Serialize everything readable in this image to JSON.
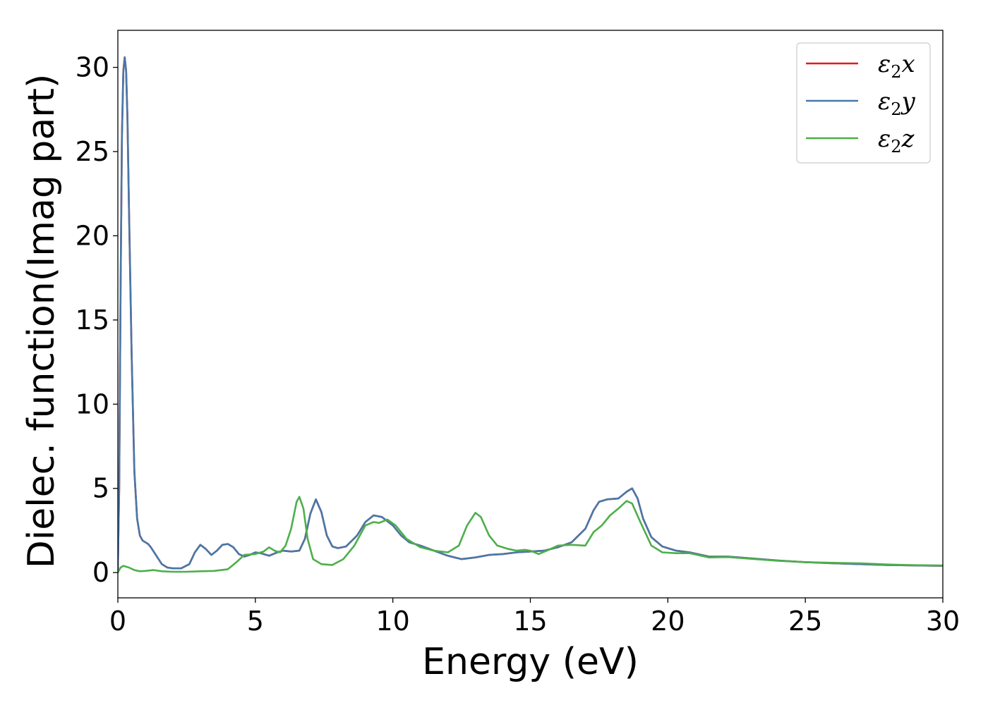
{
  "chart_data": {
    "type": "line",
    "title": "",
    "xlabel": "Energy (eV)",
    "ylabel": "Dielec. function(Imag part)",
    "xlim": [
      0,
      30
    ],
    "ylim": [
      -1.5,
      32.2
    ],
    "xticks": [
      0,
      5,
      10,
      15,
      20,
      25,
      30
    ],
    "yticks": [
      0,
      5,
      10,
      15,
      20,
      25,
      30
    ],
    "grid": false,
    "legend_position": "top-right",
    "series": [
      {
        "name": "ε₂x",
        "legend_base": "ε",
        "legend_sub": "2",
        "legend_tail": "x",
        "color": "#e41a1c",
        "points": [
          [
            0,
            0.2
          ],
          [
            0.05,
            5
          ],
          [
            0.1,
            17
          ],
          [
            0.15,
            26
          ],
          [
            0.2,
            29.8
          ],
          [
            0.25,
            30.6
          ],
          [
            0.3,
            29.8
          ],
          [
            0.35,
            27
          ],
          [
            0.4,
            22
          ],
          [
            0.5,
            13
          ],
          [
            0.6,
            6
          ],
          [
            0.7,
            3.2
          ],
          [
            0.8,
            2.2
          ],
          [
            0.9,
            1.9
          ],
          [
            1.0,
            1.8
          ],
          [
            1.1,
            1.7
          ],
          [
            1.2,
            1.5
          ],
          [
            1.4,
            1.0
          ],
          [
            1.6,
            0.5
          ],
          [
            1.8,
            0.3
          ],
          [
            2.0,
            0.25
          ],
          [
            2.3,
            0.25
          ],
          [
            2.6,
            0.5
          ],
          [
            2.8,
            1.2
          ],
          [
            3.0,
            1.65
          ],
          [
            3.2,
            1.4
          ],
          [
            3.4,
            1.05
          ],
          [
            3.6,
            1.3
          ],
          [
            3.8,
            1.65
          ],
          [
            4.0,
            1.7
          ],
          [
            4.2,
            1.5
          ],
          [
            4.4,
            1.1
          ],
          [
            4.6,
            0.95
          ],
          [
            4.8,
            1.05
          ],
          [
            5.0,
            1.2
          ],
          [
            5.2,
            1.15
          ],
          [
            5.5,
            1.0
          ],
          [
            5.8,
            1.2
          ],
          [
            6.0,
            1.3
          ],
          [
            6.3,
            1.25
          ],
          [
            6.6,
            1.3
          ],
          [
            6.8,
            2.0
          ],
          [
            7.0,
            3.5
          ],
          [
            7.2,
            4.35
          ],
          [
            7.4,
            3.6
          ],
          [
            7.6,
            2.2
          ],
          [
            7.8,
            1.55
          ],
          [
            8.0,
            1.45
          ],
          [
            8.3,
            1.55
          ],
          [
            8.7,
            2.2
          ],
          [
            9.0,
            3.0
          ],
          [
            9.3,
            3.4
          ],
          [
            9.6,
            3.3
          ],
          [
            10.0,
            2.8
          ],
          [
            10.3,
            2.2
          ],
          [
            10.6,
            1.8
          ],
          [
            11.0,
            1.6
          ],
          [
            11.5,
            1.3
          ],
          [
            12.0,
            1.0
          ],
          [
            12.5,
            0.8
          ],
          [
            13.0,
            0.9
          ],
          [
            13.5,
            1.05
          ],
          [
            14.0,
            1.1
          ],
          [
            14.5,
            1.2
          ],
          [
            15.0,
            1.25
          ],
          [
            15.5,
            1.3
          ],
          [
            16.0,
            1.5
          ],
          [
            16.5,
            1.8
          ],
          [
            17.0,
            2.6
          ],
          [
            17.3,
            3.7
          ],
          [
            17.5,
            4.2
          ],
          [
            17.8,
            4.35
          ],
          [
            18.2,
            4.4
          ],
          [
            18.5,
            4.8
          ],
          [
            18.7,
            5.0
          ],
          [
            18.9,
            4.4
          ],
          [
            19.1,
            3.2
          ],
          [
            19.4,
            2.1
          ],
          [
            19.8,
            1.55
          ],
          [
            20.3,
            1.3
          ],
          [
            20.8,
            1.2
          ],
          [
            21.5,
            0.95
          ],
          [
            22.2,
            0.95
          ],
          [
            23.0,
            0.85
          ],
          [
            24.0,
            0.72
          ],
          [
            25.0,
            0.62
          ],
          [
            26.0,
            0.55
          ],
          [
            27.0,
            0.5
          ],
          [
            28.0,
            0.45
          ],
          [
            29.0,
            0.42
          ],
          [
            30.0,
            0.4
          ]
        ]
      },
      {
        "name": "ε₂y",
        "legend_base": "ε",
        "legend_sub": "2",
        "legend_tail": "y",
        "color": "#4878a8",
        "points": [
          [
            0,
            0.2
          ],
          [
            0.05,
            5
          ],
          [
            0.1,
            17
          ],
          [
            0.15,
            26
          ],
          [
            0.2,
            29.8
          ],
          [
            0.25,
            30.6
          ],
          [
            0.3,
            29.8
          ],
          [
            0.35,
            27
          ],
          [
            0.4,
            22
          ],
          [
            0.5,
            13
          ],
          [
            0.6,
            6
          ],
          [
            0.7,
            3.2
          ],
          [
            0.8,
            2.2
          ],
          [
            0.9,
            1.9
          ],
          [
            1.0,
            1.8
          ],
          [
            1.1,
            1.7
          ],
          [
            1.2,
            1.5
          ],
          [
            1.4,
            1.0
          ],
          [
            1.6,
            0.5
          ],
          [
            1.8,
            0.3
          ],
          [
            2.0,
            0.25
          ],
          [
            2.3,
            0.25
          ],
          [
            2.6,
            0.5
          ],
          [
            2.8,
            1.2
          ],
          [
            3.0,
            1.65
          ],
          [
            3.2,
            1.4
          ],
          [
            3.4,
            1.05
          ],
          [
            3.6,
            1.3
          ],
          [
            3.8,
            1.65
          ],
          [
            4.0,
            1.7
          ],
          [
            4.2,
            1.5
          ],
          [
            4.4,
            1.1
          ],
          [
            4.6,
            0.95
          ],
          [
            4.8,
            1.05
          ],
          [
            5.0,
            1.2
          ],
          [
            5.2,
            1.15
          ],
          [
            5.5,
            1.0
          ],
          [
            5.8,
            1.2
          ],
          [
            6.0,
            1.3
          ],
          [
            6.3,
            1.25
          ],
          [
            6.6,
            1.3
          ],
          [
            6.8,
            2.0
          ],
          [
            7.0,
            3.5
          ],
          [
            7.2,
            4.35
          ],
          [
            7.4,
            3.6
          ],
          [
            7.6,
            2.2
          ],
          [
            7.8,
            1.55
          ],
          [
            8.0,
            1.45
          ],
          [
            8.3,
            1.55
          ],
          [
            8.7,
            2.2
          ],
          [
            9.0,
            3.0
          ],
          [
            9.3,
            3.4
          ],
          [
            9.6,
            3.3
          ],
          [
            10.0,
            2.8
          ],
          [
            10.3,
            2.2
          ],
          [
            10.6,
            1.8
          ],
          [
            11.0,
            1.6
          ],
          [
            11.5,
            1.3
          ],
          [
            12.0,
            1.0
          ],
          [
            12.5,
            0.8
          ],
          [
            13.0,
            0.9
          ],
          [
            13.5,
            1.05
          ],
          [
            14.0,
            1.1
          ],
          [
            14.5,
            1.2
          ],
          [
            15.0,
            1.25
          ],
          [
            15.5,
            1.3
          ],
          [
            16.0,
            1.5
          ],
          [
            16.5,
            1.8
          ],
          [
            17.0,
            2.6
          ],
          [
            17.3,
            3.7
          ],
          [
            17.5,
            4.2
          ],
          [
            17.8,
            4.35
          ],
          [
            18.2,
            4.4
          ],
          [
            18.5,
            4.8
          ],
          [
            18.7,
            5.0
          ],
          [
            18.9,
            4.4
          ],
          [
            19.1,
            3.2
          ],
          [
            19.4,
            2.1
          ],
          [
            19.8,
            1.55
          ],
          [
            20.3,
            1.3
          ],
          [
            20.8,
            1.2
          ],
          [
            21.5,
            0.95
          ],
          [
            22.2,
            0.95
          ],
          [
            23.0,
            0.85
          ],
          [
            24.0,
            0.72
          ],
          [
            25.0,
            0.62
          ],
          [
            26.0,
            0.55
          ],
          [
            27.0,
            0.5
          ],
          [
            28.0,
            0.45
          ],
          [
            29.0,
            0.42
          ],
          [
            30.0,
            0.4
          ]
        ]
      },
      {
        "name": "ε₂z",
        "legend_base": "ε",
        "legend_sub": "2",
        "legend_tail": "z",
        "color": "#4daf4a",
        "points": [
          [
            0,
            0.0
          ],
          [
            0.1,
            0.3
          ],
          [
            0.2,
            0.4
          ],
          [
            0.4,
            0.3
          ],
          [
            0.6,
            0.15
          ],
          [
            0.8,
            0.08
          ],
          [
            1.0,
            0.1
          ],
          [
            1.3,
            0.15
          ],
          [
            1.6,
            0.08
          ],
          [
            2.0,
            0.05
          ],
          [
            2.5,
            0.05
          ],
          [
            3.0,
            0.08
          ],
          [
            3.5,
            0.1
          ],
          [
            4.0,
            0.2
          ],
          [
            4.3,
            0.6
          ],
          [
            4.6,
            1.05
          ],
          [
            5.0,
            1.1
          ],
          [
            5.3,
            1.25
          ],
          [
            5.5,
            1.5
          ],
          [
            5.7,
            1.3
          ],
          [
            5.9,
            1.2
          ],
          [
            6.1,
            1.6
          ],
          [
            6.3,
            2.6
          ],
          [
            6.5,
            4.2
          ],
          [
            6.6,
            4.5
          ],
          [
            6.75,
            3.8
          ],
          [
            6.9,
            2.0
          ],
          [
            7.1,
            0.8
          ],
          [
            7.4,
            0.5
          ],
          [
            7.8,
            0.45
          ],
          [
            8.2,
            0.8
          ],
          [
            8.6,
            1.6
          ],
          [
            9.0,
            2.8
          ],
          [
            9.3,
            3.0
          ],
          [
            9.5,
            2.95
          ],
          [
            9.8,
            3.15
          ],
          [
            10.1,
            2.8
          ],
          [
            10.5,
            2.0
          ],
          [
            11.0,
            1.5
          ],
          [
            11.5,
            1.3
          ],
          [
            12.0,
            1.2
          ],
          [
            12.4,
            1.6
          ],
          [
            12.7,
            2.8
          ],
          [
            13.0,
            3.55
          ],
          [
            13.2,
            3.3
          ],
          [
            13.5,
            2.2
          ],
          [
            13.8,
            1.6
          ],
          [
            14.2,
            1.4
          ],
          [
            14.5,
            1.3
          ],
          [
            14.8,
            1.35
          ],
          [
            15.0,
            1.3
          ],
          [
            15.3,
            1.1
          ],
          [
            15.6,
            1.3
          ],
          [
            16.0,
            1.6
          ],
          [
            16.5,
            1.65
          ],
          [
            17.0,
            1.6
          ],
          [
            17.3,
            2.4
          ],
          [
            17.6,
            2.8
          ],
          [
            17.9,
            3.4
          ],
          [
            18.2,
            3.8
          ],
          [
            18.5,
            4.25
          ],
          [
            18.7,
            4.1
          ],
          [
            19.0,
            3.0
          ],
          [
            19.4,
            1.6
          ],
          [
            19.8,
            1.2
          ],
          [
            20.3,
            1.15
          ],
          [
            20.8,
            1.15
          ],
          [
            21.5,
            0.9
          ],
          [
            22.2,
            0.92
          ],
          [
            23.0,
            0.82
          ],
          [
            24.0,
            0.7
          ],
          [
            25.0,
            0.62
          ],
          [
            26.0,
            0.58
          ],
          [
            27.0,
            0.55
          ],
          [
            28.0,
            0.48
          ],
          [
            29.0,
            0.44
          ],
          [
            30.0,
            0.42
          ]
        ]
      }
    ]
  }
}
